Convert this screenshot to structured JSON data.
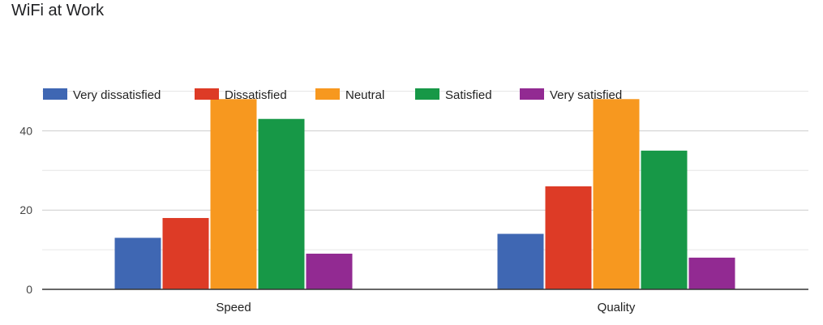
{
  "chart_data": {
    "type": "bar",
    "title": "WiFi at Work",
    "categories": [
      "Speed",
      "Quality"
    ],
    "series": [
      {
        "name": "Very dissatisfied",
        "color": "#3f67b3",
        "values": [
          13,
          14
        ]
      },
      {
        "name": "Dissatisfied",
        "color": "#dd3b26",
        "values": [
          18,
          26
        ]
      },
      {
        "name": "Neutral",
        "color": "#f7981f",
        "values": [
          48,
          48
        ]
      },
      {
        "name": "Satisfied",
        "color": "#179847",
        "values": [
          43,
          35
        ]
      },
      {
        "name": "Very satisfied",
        "color": "#922a92",
        "values": [
          9,
          8
        ]
      }
    ],
    "y_ticks": [
      "0",
      "20",
      "40"
    ],
    "ylim": [
      0,
      50
    ],
    "grid": true,
    "legend_position": "top-left"
  }
}
